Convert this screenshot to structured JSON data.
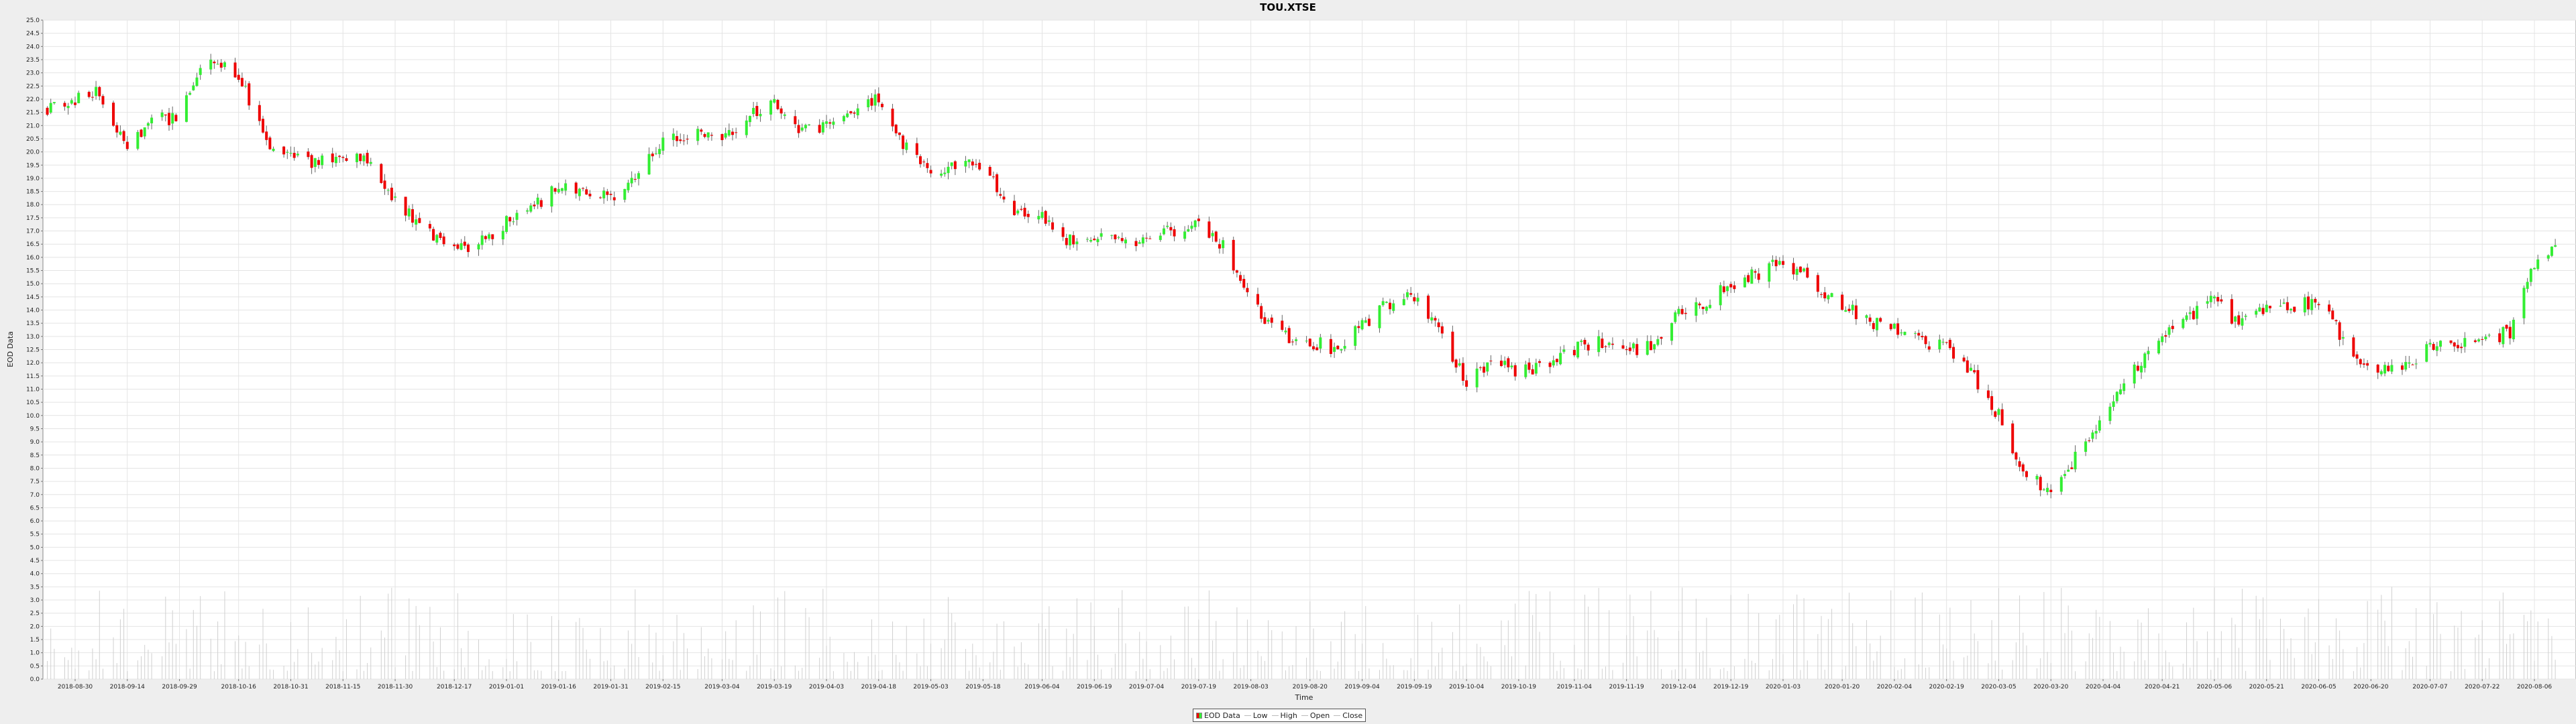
{
  "chart_data": {
    "type": "candlestick",
    "title": "TOU.XTSE",
    "xlabel": "Time",
    "ylabel": "EOD Data",
    "ylim": [
      0.0,
      25.0
    ],
    "ytick_step": 0.5,
    "grid": true,
    "x_tick_labels": [
      "2018-08-30",
      "2018-09-14",
      "2018-09-29",
      "2018-10-16",
      "2018-10-31",
      "2018-11-15",
      "2018-11-30",
      "2018-12-17",
      "2019-01-01",
      "2019-01-16",
      "2019-01-31",
      "2019-02-15",
      "2019-03-04",
      "2019-03-19",
      "2019-04-03",
      "2019-04-18",
      "2019-05-03",
      "2019-05-18",
      "2019-06-04",
      "2019-06-19",
      "2019-07-04",
      "2019-07-19",
      "2019-08-03",
      "2019-08-20",
      "2019-09-04",
      "2019-09-19",
      "2019-10-04",
      "2019-10-19",
      "2019-11-04",
      "2019-11-19",
      "2019-12-04",
      "2019-12-19",
      "2020-01-03",
      "2020-01-20",
      "2020-02-04",
      "2020-02-19",
      "2020-03-05",
      "2020-03-20",
      "2020-04-04",
      "2020-04-21",
      "2020-05-06",
      "2020-05-21",
      "2020-06-05",
      "2020-06-20",
      "2020-07-07",
      "2020-07-22",
      "2020-08-06"
    ],
    "close_trend_dates": [
      "2018-08-20",
      "2018-08-30",
      "2018-09-05",
      "2018-09-14",
      "2018-09-21",
      "2018-09-29",
      "2018-10-06",
      "2018-10-16",
      "2018-10-25",
      "2018-10-31",
      "2018-11-08",
      "2018-11-15",
      "2018-11-22",
      "2018-11-30",
      "2018-12-07",
      "2018-12-17",
      "2018-12-22",
      "2019-01-01",
      "2019-01-08",
      "2019-01-16",
      "2019-01-24",
      "2019-01-31",
      "2019-02-08",
      "2019-02-15",
      "2019-02-24",
      "2019-03-04",
      "2019-03-12",
      "2019-03-19",
      "2019-03-26",
      "2019-04-03",
      "2019-04-10",
      "2019-04-18",
      "2019-04-25",
      "2019-05-03",
      "2019-05-10",
      "2019-05-18",
      "2019-05-26",
      "2019-06-04",
      "2019-06-11",
      "2019-06-19",
      "2019-06-26",
      "2019-07-04",
      "2019-07-11",
      "2019-07-19",
      "2019-07-26",
      "2019-08-03",
      "2019-08-11",
      "2019-08-20",
      "2019-08-28",
      "2019-09-04",
      "2019-09-11",
      "2019-09-19",
      "2019-09-27",
      "2019-10-04",
      "2019-10-11",
      "2019-10-19",
      "2019-10-27",
      "2019-11-04",
      "2019-11-11",
      "2019-11-19",
      "2019-11-27",
      "2019-12-04",
      "2019-12-11",
      "2019-12-19",
      "2019-12-27",
      "2020-01-03",
      "2020-01-11",
      "2020-01-20",
      "2020-01-28",
      "2020-02-04",
      "2020-02-12",
      "2020-02-19",
      "2020-02-27",
      "2020-03-05",
      "2020-03-12",
      "2020-03-20",
      "2020-03-27",
      "2020-04-04",
      "2020-04-12",
      "2020-04-21",
      "2020-04-28",
      "2020-05-06",
      "2020-05-13",
      "2020-05-21",
      "2020-05-29",
      "2020-06-05",
      "2020-06-13",
      "2020-06-20",
      "2020-06-28",
      "2020-07-07",
      "2020-07-15",
      "2020-07-22",
      "2020-07-30",
      "2020-08-06",
      "2020-08-12"
    ],
    "close_trend_values": [
      21.6,
      22.0,
      22.3,
      20.0,
      21.4,
      21.2,
      23.6,
      23.0,
      20.0,
      19.8,
      19.6,
      19.6,
      19.8,
      18.2,
      17.2,
      16.2,
      16.4,
      17.3,
      17.9,
      18.6,
      18.6,
      18.2,
      19.2,
      20.4,
      20.8,
      20.6,
      21.4,
      21.8,
      20.8,
      20.9,
      21.6,
      22.0,
      20.3,
      19.2,
      19.6,
      19.5,
      17.8,
      17.5,
      16.6,
      16.9,
      16.8,
      16.5,
      17.0,
      17.4,
      16.4,
      14.4,
      13.0,
      12.8,
      12.5,
      13.4,
      14.2,
      14.6,
      13.0,
      11.2,
      12.0,
      11.7,
      11.8,
      12.5,
      12.8,
      12.5,
      12.6,
      14.0,
      14.2,
      15.0,
      15.4,
      15.9,
      15.1,
      14.2,
      13.5,
      13.4,
      12.7,
      12.6,
      11.4,
      10.0,
      7.8,
      7.2,
      8.4,
      10.0,
      11.5,
      13.2,
      13.6,
      14.4,
      13.5,
      14.0,
      14.1,
      14.4,
      12.7,
      11.8,
      11.9,
      12.5,
      12.8,
      12.8,
      13.2,
      15.8,
      16.6
    ],
    "volume_scale_max": 25.0,
    "legend": [
      "EOD Data",
      "Low",
      "High",
      "Open",
      "Close"
    ],
    "legend_placement": "bottom-center",
    "colors": {
      "up": "#33ee33",
      "down": "#ee0000",
      "volume": "#d0d0d0",
      "grid": "#e4e4e4",
      "plot_bg": "#ffffff",
      "page_bg": "#eeeeee"
    }
  }
}
